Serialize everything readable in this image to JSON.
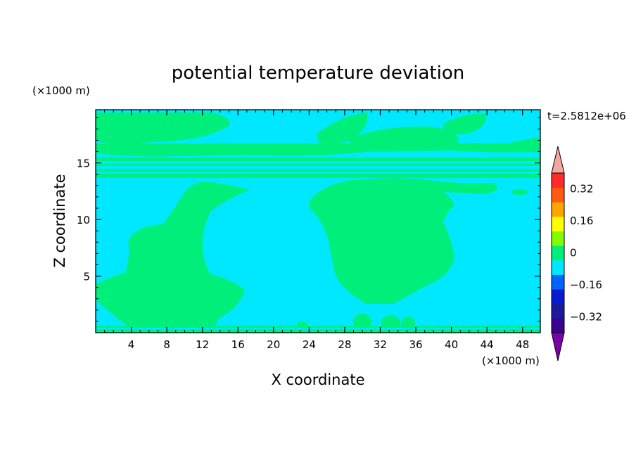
{
  "chart_data": {
    "type": "heatmap",
    "title": "potential temperature deviation",
    "xlabel": "X coordinate",
    "ylabel": "Z coordinate",
    "x_unit_note": "(×1000 m)",
    "y_unit_note": "(×1000 m)",
    "time_label": "t=2.5812e+06",
    "xlim": [
      0,
      50
    ],
    "ylim": [
      0,
      19.7
    ],
    "x_ticks": [
      4,
      8,
      12,
      16,
      20,
      24,
      28,
      32,
      36,
      40,
      44,
      48
    ],
    "x_tick_labels": [
      "4",
      "8",
      "12",
      "16",
      "20",
      "24",
      "28",
      "32",
      "36",
      "40",
      "44",
      "48"
    ],
    "y_ticks": [
      5,
      10,
      15
    ],
    "y_tick_labels": [
      "5",
      "10",
      "15"
    ],
    "background_level": "-0.04 to 0",
    "colorbar": {
      "levels": [
        -0.4,
        -0.32,
        -0.24,
        -0.16,
        -0.08,
        0,
        0.08,
        0.16,
        0.24,
        0.32,
        0.4
      ],
      "tick_values": [
        -0.32,
        -0.16,
        0,
        0.16,
        0.32
      ],
      "tick_labels": [
        "−0.32",
        "−0.16",
        "0",
        "0.16",
        "0.32"
      ],
      "colors": [
        "#3a0090",
        "#1a1a9a",
        "#0a1ad0",
        "#0064ff",
        "#00e8ff",
        "#00ee7a",
        "#84fc00",
        "#ffff00",
        "#ffa500",
        "#ff5a10",
        "#ff2a2a"
      ],
      "over_color": "#f4a6a0",
      "under_color": "#7a00a8"
    },
    "features": [
      {
        "name": "left-plume",
        "level": "0 to 0.08",
        "x_range": [
          0,
          17
        ],
        "z_range": [
          0,
          13.5
        ]
      },
      {
        "name": "right-plume",
        "level": "0 to 0.08",
        "x_range": [
          24,
          41
        ],
        "z_range": [
          2.5,
          13.5
        ]
      },
      {
        "name": "tropopause-bands",
        "level": "0 to 0.08",
        "z_range": [
          13.8,
          19.7
        ]
      }
    ]
  }
}
